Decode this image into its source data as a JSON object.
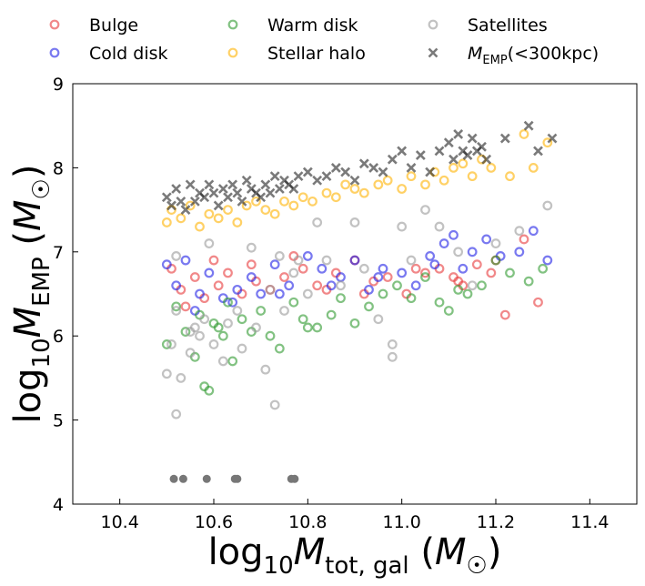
{
  "chart_data": {
    "type": "scatter",
    "xlabel": "log₁₀M_tot,gal (M☉)",
    "ylabel": "log₁₀M_EMP (M☉)",
    "xlim": [
      10.3,
      11.5
    ],
    "ylim": [
      4,
      9
    ],
    "x_ticks": [
      "10.4",
      "10.6",
      "10.8",
      "11.0",
      "11.2",
      "11.4"
    ],
    "y_ticks": [
      "4",
      "5",
      "6",
      "7",
      "8",
      "9"
    ],
    "legend_position": "top, above plot, 3 columns",
    "legend": [
      {
        "label": "Bulge",
        "color": "#e8393b",
        "marker": "circle"
      },
      {
        "label": "Cold disk",
        "color": "#1f1fe6",
        "marker": "circle"
      },
      {
        "label": "Warm disk",
        "color": "#2e9a2e",
        "marker": "circle"
      },
      {
        "label": "Stellar halo",
        "color": "#ffb300",
        "marker": "circle"
      },
      {
        "label": "Satellites",
        "color": "#9a9a9a",
        "marker": "circle"
      },
      {
        "label": "M_EMP(<300kpc)",
        "color": "#222222",
        "marker": "x"
      }
    ],
    "series": [
      {
        "name": "Bulge",
        "color": "#e8393b",
        "x": [
          10.51,
          10.53,
          10.56,
          10.58,
          10.61,
          10.63,
          10.66,
          10.69,
          10.72,
          10.75,
          10.79,
          10.82,
          10.86,
          10.9,
          10.94,
          10.97,
          11.01,
          11.05,
          11.08,
          11.11,
          11.13,
          11.16,
          11.19,
          11.22,
          11.26,
          11.29,
          10.54,
          10.6,
          10.68,
          10.77,
          10.84,
          10.92,
          11.03,
          11.12,
          11.2
        ],
        "y": [
          6.8,
          6.55,
          6.7,
          6.45,
          6.6,
          6.75,
          6.5,
          6.65,
          6.55,
          6.7,
          6.8,
          6.6,
          6.75,
          6.9,
          6.65,
          6.7,
          6.5,
          6.75,
          6.8,
          6.7,
          6.6,
          6.85,
          6.75,
          6.25,
          7.15,
          6.4,
          6.35,
          6.9,
          6.85,
          6.95,
          6.55,
          6.5,
          6.8,
          6.65,
          6.9
        ]
      },
      {
        "name": "Cold disk",
        "color": "#1f1fe6",
        "x": [
          10.5,
          10.52,
          10.54,
          10.57,
          10.59,
          10.62,
          10.65,
          10.68,
          10.7,
          10.73,
          10.76,
          10.8,
          10.83,
          10.87,
          10.9,
          10.93,
          10.96,
          11.0,
          11.03,
          11.06,
          11.09,
          11.11,
          11.13,
          11.15,
          11.18,
          11.21,
          11.25,
          11.28,
          11.31,
          10.56,
          10.64,
          10.74,
          10.85,
          10.95,
          11.07
        ],
        "y": [
          6.85,
          6.6,
          6.9,
          6.5,
          6.75,
          6.45,
          6.55,
          6.7,
          6.5,
          6.85,
          6.6,
          6.95,
          6.8,
          6.7,
          6.9,
          6.55,
          6.8,
          6.75,
          6.6,
          6.95,
          7.1,
          7.2,
          6.8,
          7.0,
          7.15,
          6.95,
          7.0,
          7.25,
          6.9,
          6.3,
          6.4,
          6.5,
          6.6,
          6.7,
          6.85
        ]
      },
      {
        "name": "Warm disk",
        "color": "#2e9a2e",
        "x": [
          10.5,
          10.52,
          10.54,
          10.56,
          10.57,
          10.59,
          10.61,
          10.63,
          10.64,
          10.66,
          10.68,
          10.7,
          10.72,
          10.74,
          10.77,
          10.79,
          10.82,
          10.85,
          10.87,
          10.9,
          10.93,
          10.96,
          10.99,
          11.02,
          11.05,
          11.08,
          11.1,
          11.12,
          11.14,
          11.17,
          11.2,
          11.23,
          11.27,
          11.3,
          10.58,
          10.6,
          10.62,
          10.8
        ],
        "y": [
          5.9,
          6.35,
          6.05,
          5.75,
          6.25,
          5.35,
          6.1,
          6.4,
          5.7,
          6.2,
          6.05,
          6.3,
          6.0,
          5.85,
          6.4,
          6.2,
          6.1,
          6.25,
          6.45,
          6.15,
          6.35,
          6.5,
          6.6,
          6.45,
          6.7,
          6.4,
          6.3,
          6.55,
          6.5,
          6.6,
          6.9,
          6.75,
          6.65,
          6.8,
          5.4,
          6.15,
          6.0,
          6.1
        ]
      },
      {
        "name": "Stellar halo",
        "color": "#ffb300",
        "x": [
          10.5,
          10.51,
          10.53,
          10.55,
          10.57,
          10.59,
          10.61,
          10.63,
          10.65,
          10.67,
          10.69,
          10.71,
          10.73,
          10.75,
          10.77,
          10.79,
          10.81,
          10.84,
          10.86,
          10.88,
          10.9,
          10.92,
          10.95,
          10.97,
          11.0,
          11.02,
          11.05,
          11.07,
          11.09,
          11.11,
          11.13,
          11.15,
          11.17,
          11.19,
          11.23,
          11.26,
          11.28,
          11.31
        ],
        "y": [
          7.35,
          7.5,
          7.4,
          7.55,
          7.3,
          7.45,
          7.4,
          7.5,
          7.35,
          7.55,
          7.6,
          7.5,
          7.45,
          7.6,
          7.55,
          7.65,
          7.6,
          7.7,
          7.65,
          7.8,
          7.75,
          7.7,
          7.8,
          7.85,
          7.75,
          7.9,
          7.8,
          7.95,
          7.85,
          8.0,
          8.05,
          7.9,
          8.1,
          8.0,
          7.9,
          8.4,
          8.0,
          8.3
        ]
      },
      {
        "name": "Satellites",
        "color": "#9a9a9a",
        "x": [
          10.5,
          10.51,
          10.52,
          10.52,
          10.53,
          10.55,
          10.56,
          10.57,
          10.58,
          10.6,
          10.62,
          10.63,
          10.65,
          10.66,
          10.68,
          10.69,
          10.71,
          10.72,
          10.73,
          10.75,
          10.77,
          10.78,
          10.8,
          10.82,
          10.84,
          10.87,
          10.9,
          10.92,
          10.95,
          10.98,
          11.0,
          11.02,
          11.05,
          11.08,
          11.12,
          11.15,
          11.2,
          11.25,
          11.31,
          10.52,
          10.55,
          10.59,
          10.74,
          10.98
        ],
        "y": [
          5.55,
          5.9,
          5.07,
          6.95,
          5.5,
          5.8,
          6.1,
          6.0,
          6.2,
          5.9,
          5.7,
          6.15,
          6.3,
          5.85,
          7.05,
          6.1,
          5.6,
          6.55,
          5.18,
          6.3,
          6.75,
          6.9,
          6.5,
          7.35,
          6.9,
          6.6,
          7.35,
          6.8,
          6.2,
          5.9,
          7.3,
          6.9,
          7.5,
          7.3,
          7.0,
          6.6,
          7.1,
          7.25,
          7.55,
          6.3,
          6.05,
          7.1,
          6.95,
          5.75
        ]
      },
      {
        "name": "M_EMP(<300kpc)",
        "color": "#222222",
        "x": [
          10.5,
          10.51,
          10.52,
          10.53,
          10.54,
          10.55,
          10.56,
          10.57,
          10.58,
          10.59,
          10.6,
          10.61,
          10.62,
          10.63,
          10.64,
          10.65,
          10.66,
          10.67,
          10.68,
          10.69,
          10.7,
          10.71,
          10.72,
          10.73,
          10.74,
          10.75,
          10.76,
          10.77,
          10.78,
          10.8,
          10.82,
          10.84,
          10.86,
          10.88,
          10.9,
          10.92,
          10.94,
          10.96,
          10.98,
          11.0,
          11.02,
          11.04,
          11.06,
          11.08,
          11.1,
          11.11,
          11.12,
          11.13,
          11.14,
          11.15,
          11.16,
          11.17,
          11.18,
          11.22,
          11.27,
          11.29,
          11.32
        ],
        "y": [
          7.65,
          7.55,
          7.75,
          7.6,
          7.5,
          7.8,
          7.6,
          7.7,
          7.65,
          7.8,
          7.7,
          7.55,
          7.75,
          7.65,
          7.8,
          7.7,
          7.6,
          7.85,
          7.75,
          7.7,
          7.65,
          7.8,
          7.7,
          7.9,
          7.75,
          7.85,
          7.8,
          7.75,
          7.9,
          7.95,
          7.85,
          7.9,
          8.0,
          7.95,
          7.85,
          8.05,
          8.0,
          7.95,
          8.1,
          8.2,
          8.0,
          8.15,
          7.95,
          8.2,
          8.3,
          8.1,
          8.4,
          8.2,
          8.15,
          8.35,
          8.2,
          8.25,
          8.1,
          8.35,
          8.5,
          8.2,
          8.35
        ]
      },
      {
        "name": "",
        "color": "#777777",
        "filled": true,
        "x": [
          10.515,
          10.535,
          10.585,
          10.645,
          10.65,
          10.765,
          10.772
        ],
        "y": [
          4.3,
          4.3,
          4.3,
          4.3,
          4.3,
          4.3,
          4.3
        ]
      }
    ]
  }
}
